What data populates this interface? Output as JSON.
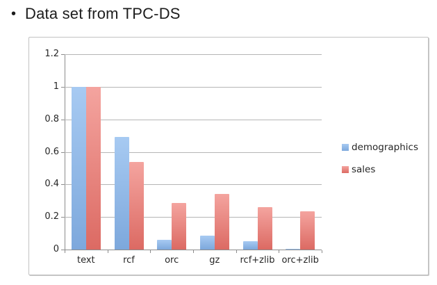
{
  "slide": {
    "bullet": "•",
    "title": "Data set from TPC-DS"
  },
  "chart_data": {
    "type": "bar",
    "title": "",
    "xlabel": "",
    "ylabel": "",
    "categories": [
      "text",
      "rcf",
      "orc",
      "gz",
      "rcf+zlib",
      "orc+zlib"
    ],
    "series": [
      {
        "name": "demographics",
        "values": [
          1.0,
          0.69,
          0.06,
          0.085,
          0.05,
          0.005
        ],
        "color_top": "#a7caf2",
        "color_bottom": "#7da8dc"
      },
      {
        "name": "sales",
        "values": [
          1.0,
          0.54,
          0.285,
          0.34,
          0.26,
          0.235
        ],
        "color_top": "#f4a49f",
        "color_bottom": "#dc6a63"
      }
    ],
    "ylim": [
      0,
      1.2
    ],
    "ytick_labels": [
      "0",
      "0.2",
      "0.4",
      "0.6",
      "0.8",
      "1",
      "1.2"
    ],
    "grid": true,
    "legend_position": "right"
  },
  "colors": {
    "gridline": "#b5b5b5",
    "axis": "#8c8c8c",
    "label_text": "#262626",
    "frame_border": "#c2c2c2"
  }
}
